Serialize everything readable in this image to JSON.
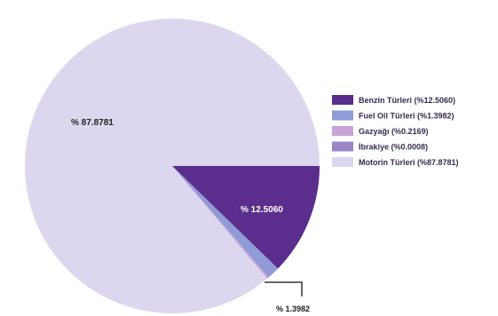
{
  "chart_data": {
    "type": "pie",
    "slices": [
      {
        "name": "Benzin Türleri (%12.5060)",
        "value": 12.506,
        "color": "#5b2d8c"
      },
      {
        "name": "Fuel Oil Türleri (%1.3982)",
        "value": 1.3982,
        "color": "#8f9bd6"
      },
      {
        "name": "Gazyağı (%0.2169)",
        "value": 0.2169,
        "color": "#c9a3d6"
      },
      {
        "name": "İbrakiye (%0.0008)",
        "value": 0.0008,
        "color": "#9b86c6"
      },
      {
        "name": "Motorin Türleri (%87.8781)",
        "value": 87.8781,
        "color": "#dcd7ee"
      }
    ],
    "data_labels": {
      "motorin": "% 87.8781",
      "benzin": "% 12.5060",
      "fuel_oil": "% 1.3982"
    }
  }
}
